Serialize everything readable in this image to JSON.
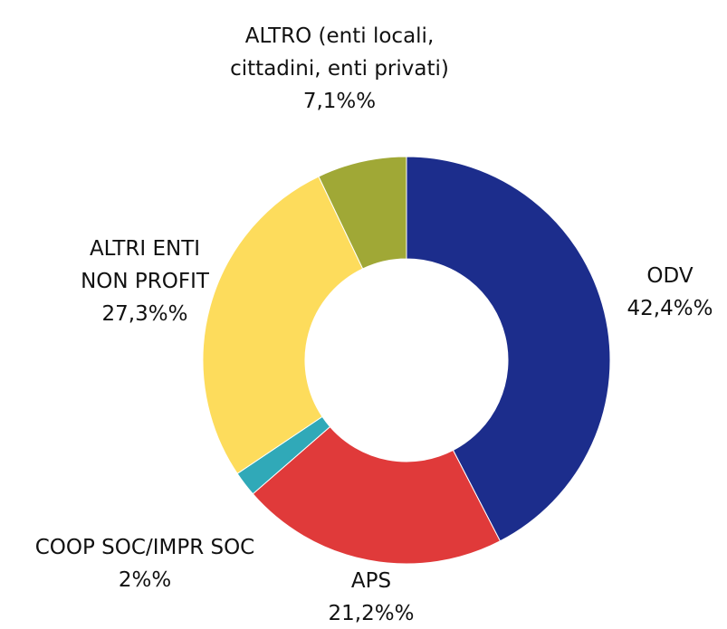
{
  "chart_data": {
    "type": "donut",
    "categories": [
      "ODV",
      "APS",
      "COOP SOC/IMPR SOC",
      "ALTRI ENTI NON PROFIT",
      "ALTRO (enti locali, cittadini, enti privati)"
    ],
    "values": [
      42.4,
      21.2,
      2,
      27.3,
      7.1
    ],
    "value_labels": [
      "42,4%%",
      "21,2%%",
      "2%%",
      "27,3%%",
      "7,1%%"
    ],
    "colors": [
      "#1c2d8c",
      "#e03a3a",
      "#30a9b8",
      "#fddc5c",
      "#a0a836"
    ]
  }
}
